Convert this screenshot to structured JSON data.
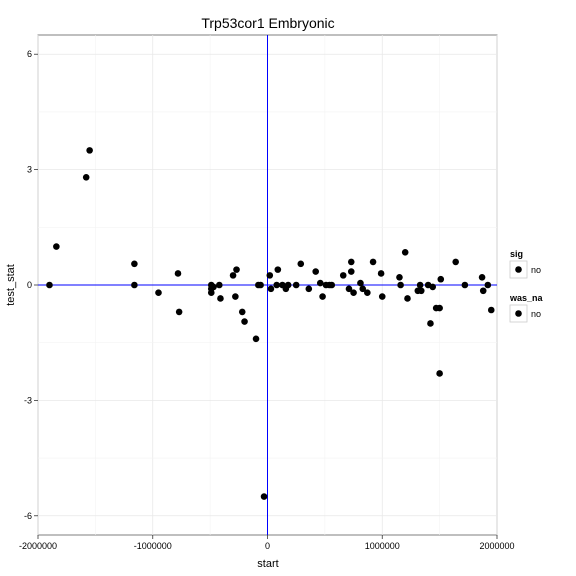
{
  "chart_data": {
    "type": "scatter",
    "title": "Trp53cor1 Embryonic",
    "xlabel": "start",
    "ylabel": "test_stat",
    "xlim": [
      -2000000,
      2000000
    ],
    "ylim": [
      -6.5,
      6.5
    ],
    "x_ticks": [
      -2000000,
      -1000000,
      0,
      1000000,
      2000000
    ],
    "x_tick_labels": [
      "-2000000",
      "-1000000",
      "0",
      "1000000",
      "2000000"
    ],
    "y_ticks": [
      -6,
      -3,
      0,
      3,
      6
    ],
    "y_tick_labels": [
      "-6",
      "-3",
      "0",
      "3",
      "6"
    ],
    "grid": true,
    "reference_lines": {
      "x": 0,
      "y": 0,
      "color": "#0000ff"
    },
    "point_color": "#000000",
    "legend": {
      "placement": "right",
      "groups": [
        {
          "title": "sig",
          "entries": [
            "no"
          ]
        },
        {
          "title": "was_na",
          "entries": [
            "no"
          ]
        }
      ]
    },
    "points": [
      {
        "x": -1900000,
        "y": 0.0
      },
      {
        "x": -1840000,
        "y": 1.0
      },
      {
        "x": -1580000,
        "y": 2.8
      },
      {
        "x": -1550000,
        "y": 3.5
      },
      {
        "x": -1160000,
        "y": 0.55
      },
      {
        "x": -1160000,
        "y": 0.0
      },
      {
        "x": -950000,
        "y": -0.2
      },
      {
        "x": -780000,
        "y": 0.3
      },
      {
        "x": -770000,
        "y": -0.7
      },
      {
        "x": -490000,
        "y": 0.0
      },
      {
        "x": -490000,
        "y": -0.1
      },
      {
        "x": -490000,
        "y": -0.2
      },
      {
        "x": -470000,
        "y": -0.05
      },
      {
        "x": -420000,
        "y": 0.0
      },
      {
        "x": -410000,
        "y": -0.35
      },
      {
        "x": -300000,
        "y": 0.25
      },
      {
        "x": -280000,
        "y": -0.3
      },
      {
        "x": -270000,
        "y": 0.4
      },
      {
        "x": -220000,
        "y": -0.7
      },
      {
        "x": -200000,
        "y": -0.95
      },
      {
        "x": -100000,
        "y": -1.4
      },
      {
        "x": -80000,
        "y": 0.0
      },
      {
        "x": -60000,
        "y": 0.0
      },
      {
        "x": -30000,
        "y": -5.5
      },
      {
        "x": 20000,
        "y": 0.25
      },
      {
        "x": 30000,
        "y": -0.1
      },
      {
        "x": 80000,
        "y": 0.0
      },
      {
        "x": 90000,
        "y": 0.4
      },
      {
        "x": 130000,
        "y": 0.0
      },
      {
        "x": 160000,
        "y": -0.1
      },
      {
        "x": 180000,
        "y": 0.0
      },
      {
        "x": 250000,
        "y": 0.0
      },
      {
        "x": 290000,
        "y": 0.55
      },
      {
        "x": 360000,
        "y": -0.1
      },
      {
        "x": 420000,
        "y": 0.35
      },
      {
        "x": 460000,
        "y": 0.05
      },
      {
        "x": 480000,
        "y": -0.3
      },
      {
        "x": 510000,
        "y": 0.0
      },
      {
        "x": 540000,
        "y": 0.0
      },
      {
        "x": 560000,
        "y": 0.0
      },
      {
        "x": 660000,
        "y": 0.25
      },
      {
        "x": 710000,
        "y": -0.1
      },
      {
        "x": 730000,
        "y": 0.35
      },
      {
        "x": 730000,
        "y": 0.6
      },
      {
        "x": 750000,
        "y": -0.2
      },
      {
        "x": 810000,
        "y": 0.05
      },
      {
        "x": 830000,
        "y": -0.1
      },
      {
        "x": 870000,
        "y": -0.2
      },
      {
        "x": 920000,
        "y": 0.6
      },
      {
        "x": 990000,
        "y": 0.3
      },
      {
        "x": 1000000,
        "y": -0.3
      },
      {
        "x": 1150000,
        "y": 0.2
      },
      {
        "x": 1160000,
        "y": 0.0
      },
      {
        "x": 1200000,
        "y": 0.85
      },
      {
        "x": 1220000,
        "y": -0.35
      },
      {
        "x": 1310000,
        "y": -0.15
      },
      {
        "x": 1330000,
        "y": 0.0
      },
      {
        "x": 1340000,
        "y": -0.15
      },
      {
        "x": 1400000,
        "y": 0.0
      },
      {
        "x": 1420000,
        "y": -1.0
      },
      {
        "x": 1440000,
        "y": -0.05
      },
      {
        "x": 1470000,
        "y": -0.6
      },
      {
        "x": 1500000,
        "y": -0.6
      },
      {
        "x": 1500000,
        "y": -2.3
      },
      {
        "x": 1510000,
        "y": 0.15
      },
      {
        "x": 1640000,
        "y": 0.6
      },
      {
        "x": 1720000,
        "y": 0.0
      },
      {
        "x": 1870000,
        "y": 0.2
      },
      {
        "x": 1880000,
        "y": -0.15
      },
      {
        "x": 1920000,
        "y": 0.0
      },
      {
        "x": 1950000,
        "y": -0.65
      }
    ]
  }
}
